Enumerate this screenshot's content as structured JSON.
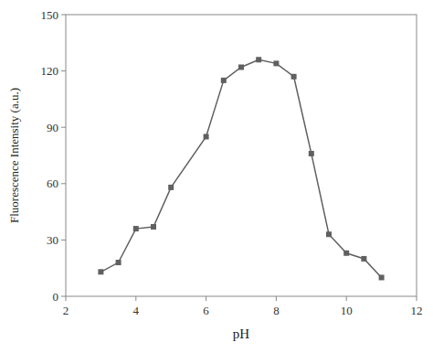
{
  "chart_data": {
    "type": "line",
    "xlabel": "pH",
    "ylabel": "Fluorescence Intensity (a.u.)",
    "x": [
      3,
      3.5,
      4,
      4.5,
      5,
      6,
      6.5,
      7,
      7.5,
      8,
      8.5,
      9,
      9.5,
      10,
      10.5,
      11
    ],
    "values": [
      13,
      18,
      36,
      37,
      58,
      85,
      115,
      122,
      126,
      124,
      117,
      76,
      33,
      23,
      20,
      10
    ],
    "xlim": [
      2,
      12
    ],
    "ylim": [
      0,
      150
    ],
    "xticks": [
      2,
      4,
      6,
      8,
      10,
      12
    ],
    "yticks": [
      0,
      30,
      60,
      90,
      120,
      150
    ],
    "color": "#606060",
    "marker": "square",
    "grid": false
  }
}
